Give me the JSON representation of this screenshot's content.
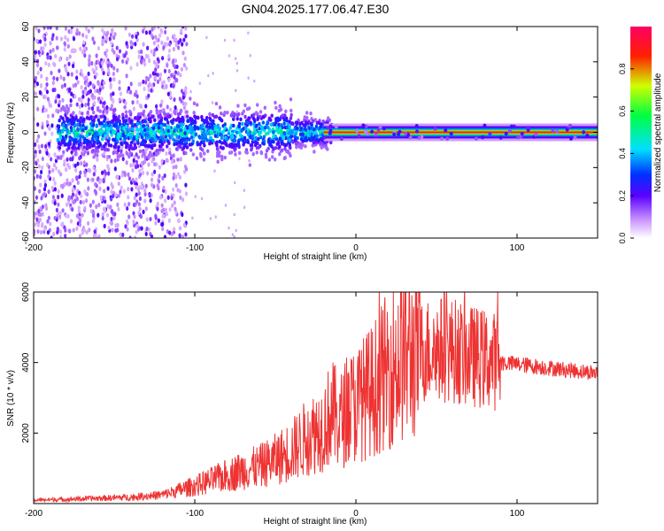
{
  "figure": {
    "title": "GN04.2025.177.06.47.E30"
  },
  "chart_data": [
    {
      "type": "heatmap",
      "xlabel": "Height of straight line (km)",
      "ylabel": "Frequency (Hz)",
      "xlim": [
        -200,
        150
      ],
      "ylim": [
        -60,
        60
      ],
      "x_ticks": [
        -200,
        -100,
        0,
        100
      ],
      "y_ticks": [
        -60,
        -40,
        -20,
        0,
        20,
        40,
        60
      ],
      "colorbar": {
        "label": "Normalized spectral amplitude",
        "range": [
          0.0,
          1.0
        ],
        "ticks": [
          "0.0",
          "0.2",
          "0.4",
          "0.6",
          "0.8"
        ],
        "colormap": [
          "#ffffff",
          "#8b00ff",
          "#0000ff",
          "#00ffff",
          "#00ff00",
          "#ffff00",
          "#ff0000",
          "#ff0066"
        ]
      },
      "features": [
        {
          "x_range": [
            -200,
            -105
          ],
          "freq_range": [
            -60,
            60
          ],
          "amplitude": "low, scattered"
        },
        {
          "x_range": [
            -180,
            -20
          ],
          "freq_center": 0,
          "freq_halfwidth": 10,
          "amplitude": "0.2-0.5"
        },
        {
          "x_range": [
            -20,
            150
          ],
          "freq_center": 0,
          "freq_halfwidth": 3,
          "amplitude": "~0.9"
        }
      ],
      "grid": false
    },
    {
      "type": "line",
      "xlabel": "Height of straight line (km)",
      "ylabel": "SNR (10 * v/v)",
      "xlim": [
        -200,
        150
      ],
      "ylim": [
        0,
        6000
      ],
      "x_ticks": [
        -200,
        -100,
        0,
        100
      ],
      "y_ticks": [
        2000,
        4000,
        6000
      ],
      "series": [
        {
          "color": "#ee3333",
          "x": [
            -200,
            -180,
            -160,
            -140,
            -120,
            -100,
            -90,
            -80,
            -70,
            -60,
            -50,
            -40,
            -30,
            -20,
            -15,
            -10,
            -5,
            0,
            10,
            20,
            30,
            40,
            50,
            60,
            70,
            80,
            90,
            100,
            110,
            120,
            130,
            140,
            150
          ],
          "y": [
            100,
            120,
            150,
            180,
            250,
            500,
            650,
            800,
            950,
            1050,
            1250,
            1500,
            1900,
            2200,
            2600,
            2300,
            2700,
            2800,
            3200,
            3800,
            4200,
            4300,
            4400,
            4350,
            4200,
            4100,
            4000,
            3950,
            3900,
            3850,
            3800,
            3750,
            3700
          ]
        }
      ],
      "grid": false
    }
  ]
}
